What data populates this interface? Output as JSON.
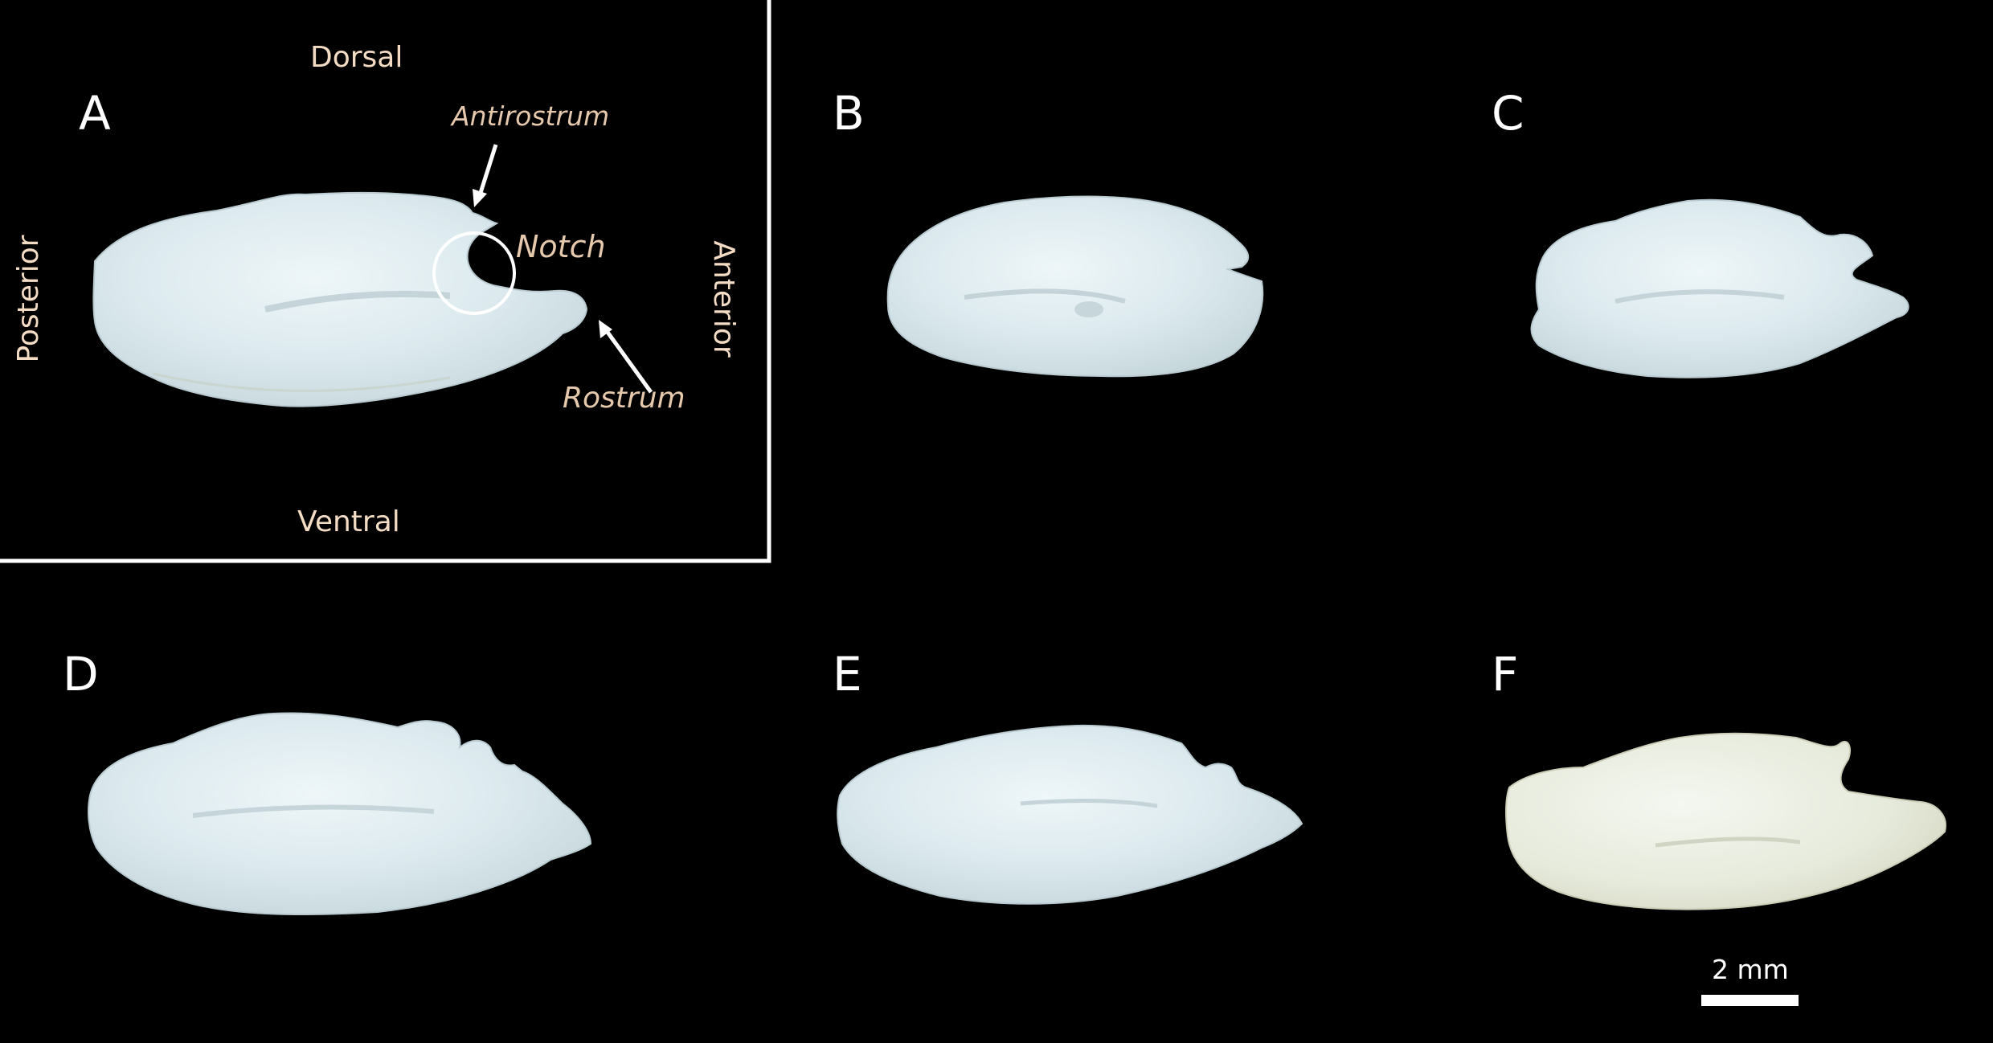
{
  "panels": [
    {
      "letter": "A"
    },
    {
      "letter": "B"
    },
    {
      "letter": "C"
    },
    {
      "letter": "D"
    },
    {
      "letter": "E"
    },
    {
      "letter": "F"
    }
  ],
  "orientation": {
    "dorsal": "Dorsal",
    "ventral": "Ventral",
    "posterior": "Posterior",
    "anterior": "Anterior"
  },
  "annotations": {
    "antirostrum": "Antirostrum",
    "notch": "Notch",
    "rostrum": "Rostrum"
  },
  "scale_bar": {
    "label": "2 mm"
  },
  "colors": {
    "background": "#000000",
    "otolith": "#e2eef2",
    "orientation_text": "#f3dcc3",
    "annotation_text": "#e6c9ac",
    "frame": "#ffffff"
  }
}
